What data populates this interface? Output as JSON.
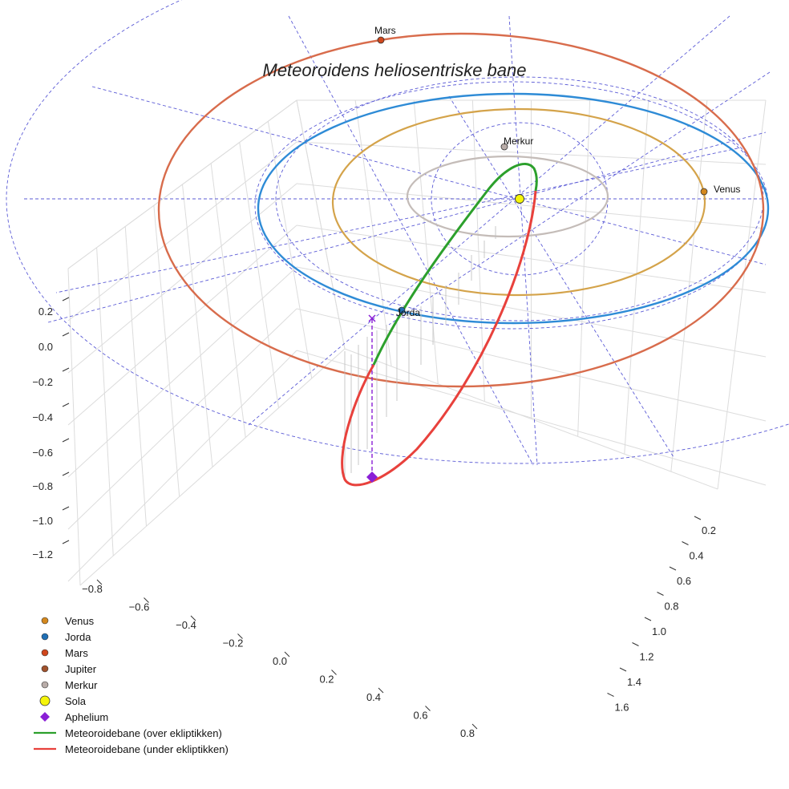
{
  "chart_data": {
    "type": "scatter",
    "title": "Meteoroidens heliosentriske bane",
    "axes": {
      "x_ticks": [
        "−0.8",
        "−0.6",
        "−0.4",
        "−0.2",
        "0.0",
        "0.2",
        "0.4",
        "0.6",
        "0.8"
      ],
      "y_ticks": [
        "0.2",
        "0.4",
        "0.6",
        "0.8",
        "1.0",
        "1.2",
        "1.4",
        "1.6"
      ],
      "z_ticks": [
        "0.2",
        "0.0",
        "−0.2",
        "−0.4",
        "−0.6",
        "−0.8",
        "−1.0",
        "−1.2"
      ],
      "grid": true,
      "reference_grid": "dashed polar ecliptic grid"
    },
    "orbits": [
      {
        "name": "Merkur",
        "color": "#c4bcb8"
      },
      {
        "name": "Venus",
        "color": "#d4a34a"
      },
      {
        "name": "Jorda",
        "color": "#2e8bd6"
      },
      {
        "name": "Mars",
        "color": "#d86c4c"
      }
    ],
    "planets": [
      {
        "name": "Merkur",
        "color": "#b8aca8"
      },
      {
        "name": "Venus",
        "color": "#d4881e"
      },
      {
        "name": "Jorda",
        "color": "#1f6fb5"
      },
      {
        "name": "Mars",
        "color": "#d0471c"
      }
    ],
    "sun": {
      "name": "Sola",
      "color": "#f5f50a"
    },
    "aphelion": {
      "name": "Aphelium",
      "color": "#8a1fd6"
    },
    "meteoroid_path": {
      "above_label": "Meteoroidebane (over ekliptikken)",
      "below_label": "Meteoroidebane (under ekliptikken)",
      "above_color": "#2ca02c",
      "below_color": "#e8413c"
    },
    "legend": {
      "position": "lower-left",
      "entries": [
        {
          "label": "Venus",
          "color": "#d4881e",
          "marker": "dot"
        },
        {
          "label": "Jorda",
          "color": "#1f6fb5",
          "marker": "dot"
        },
        {
          "label": "Mars",
          "color": "#d0471c",
          "marker": "dot"
        },
        {
          "label": "Jupiter",
          "color": "#a0522d",
          "marker": "dot"
        },
        {
          "label": "Merkur",
          "color": "#b8aca8",
          "marker": "dot"
        },
        {
          "label": "Sola",
          "color": "#f5f50a",
          "marker": "big-dot"
        },
        {
          "label": "Aphelium",
          "color": "#8a1fd6",
          "marker": "diamond"
        },
        {
          "label": "Meteoroidebane (over ekliptikken)",
          "color": "#2ca02c",
          "marker": "line"
        },
        {
          "label": "Meteoroidebane (under ekliptikken)",
          "color": "#e8413c",
          "marker": "line"
        }
      ]
    }
  }
}
